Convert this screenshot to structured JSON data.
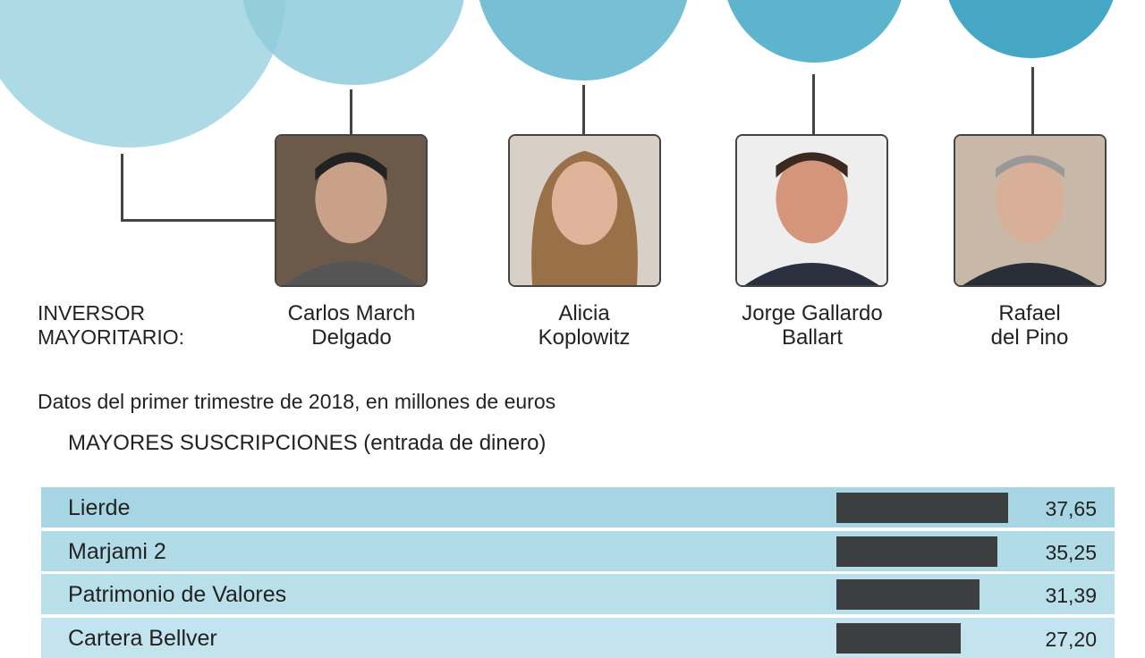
{
  "investor_label": [
    "INVERSOR",
    "MAYORITARIO:"
  ],
  "investors": [
    {
      "name": [
        "Carlos March",
        "Delgado"
      ]
    },
    {
      "name": [
        "Alicia",
        "Koplowitz"
      ]
    },
    {
      "name": [
        "Jorge Gallardo",
        "Ballart"
      ]
    },
    {
      "name": [
        "Rafael",
        "del Pino"
      ]
    }
  ],
  "subtitle": "Datos del primer trimestre de 2018, en millones de euros",
  "colors": {
    "circle_light": "#a9d8e4",
    "circle_dark": "#45a7c4",
    "bar": "#3b3f40"
  },
  "chart_data": {
    "type": "bar",
    "orientation": "horizontal",
    "title": "MAYORES SUSCRIPCIONES (entrada de dinero)",
    "categories": [
      "Lierde",
      "Marjami 2",
      "Patrimonio de Valores",
      "Cartera Bellver"
    ],
    "values": [
      37.65,
      35.25,
      31.39,
      27.2
    ],
    "value_labels": [
      "37,65",
      "35,25",
      "31,39",
      "27,20"
    ]
  }
}
